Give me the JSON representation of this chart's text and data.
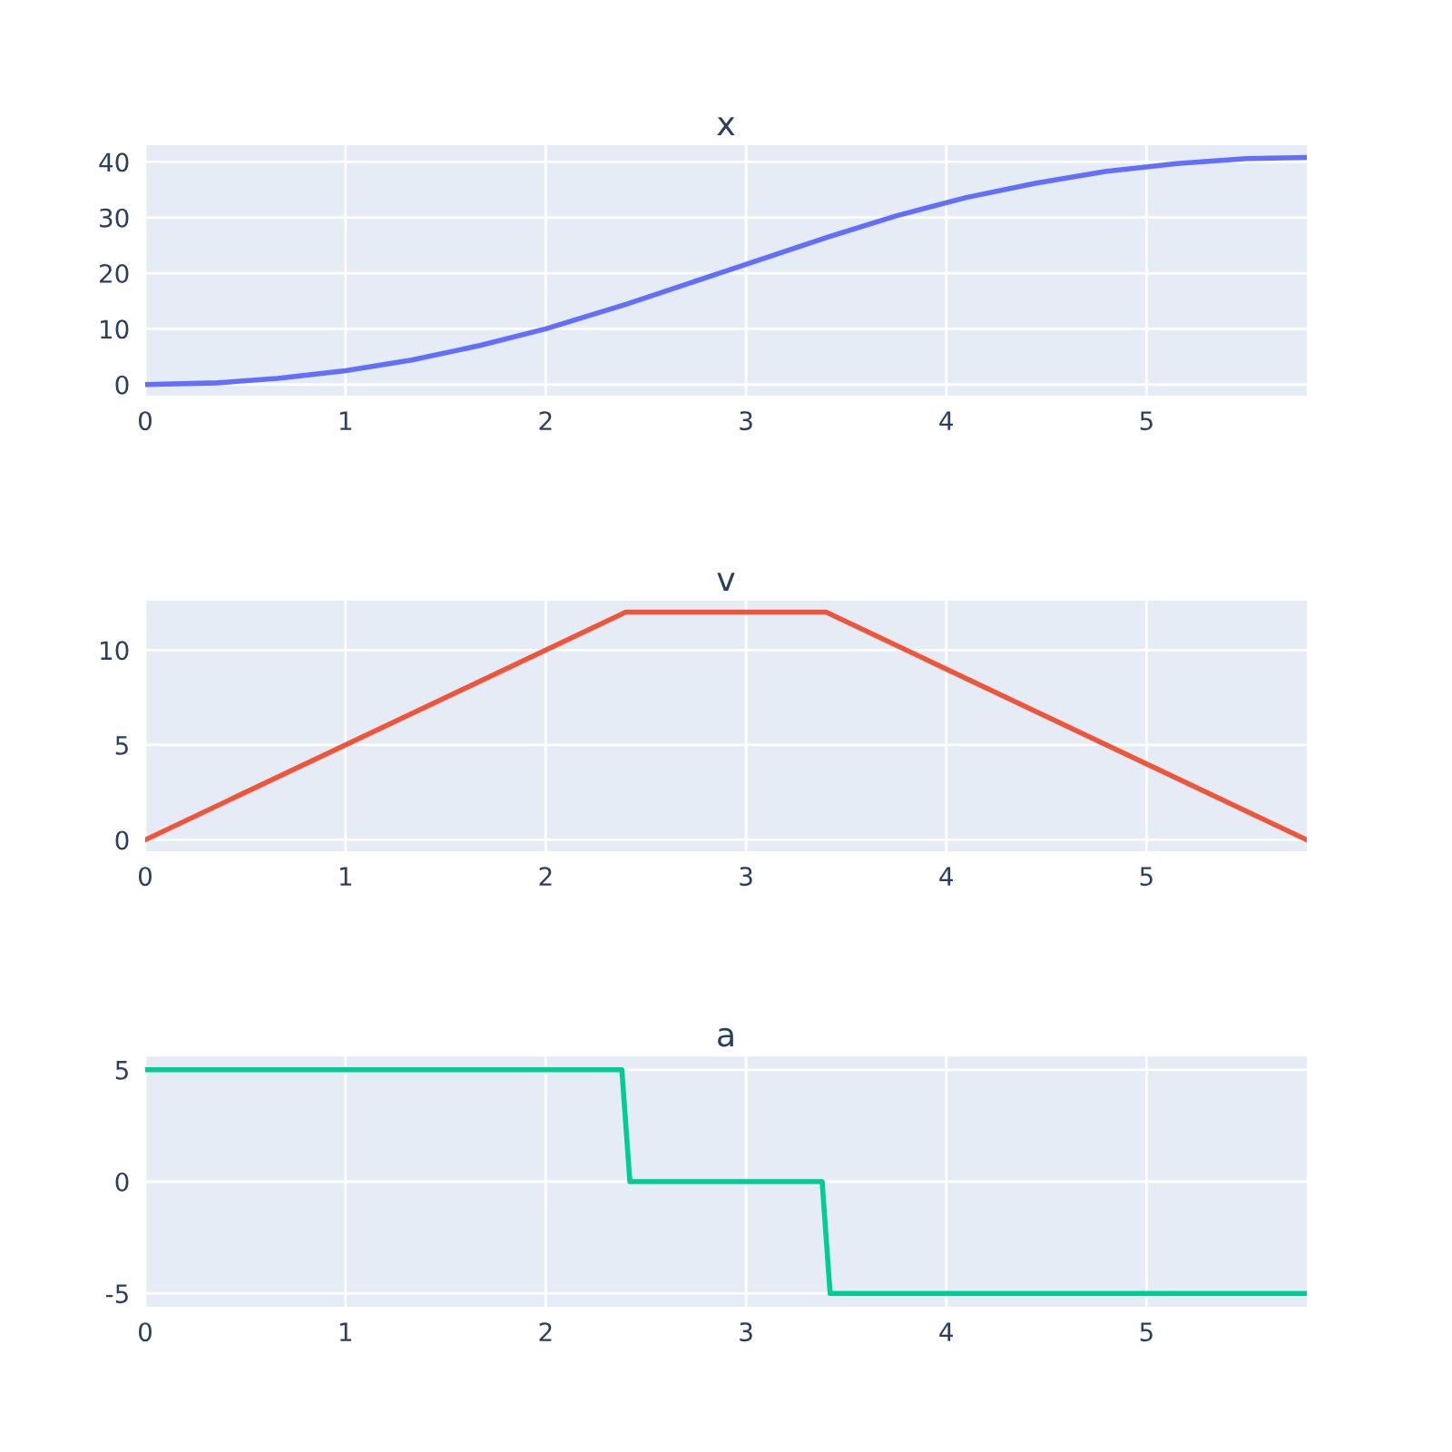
{
  "chart_data": [
    {
      "type": "line",
      "title": "x",
      "grid": true,
      "xlim": [
        0,
        5.8
      ],
      "xticks": [
        0,
        1,
        2,
        3,
        4,
        5
      ],
      "ylim": [
        -2,
        43
      ],
      "yticks": [
        0,
        10,
        20,
        30,
        40
      ],
      "series": [
        {
          "color": "#636efa",
          "x": [
            0,
            0.36,
            0.66,
            1.0,
            1.33,
            1.67,
            2.0,
            2.4,
            2.9,
            3.4,
            3.75,
            4.1,
            4.45,
            4.8,
            5.15,
            5.5,
            5.8
          ],
          "values": [
            0,
            0.3,
            1.1,
            2.5,
            4.4,
            7.0,
            10.0,
            14.4,
            20.4,
            26.4,
            30.3,
            33.6,
            36.2,
            38.3,
            39.7,
            40.6,
            40.8
          ]
        }
      ]
    },
    {
      "type": "line",
      "title": "v",
      "grid": true,
      "xlim": [
        0,
        5.8
      ],
      "xticks": [
        0,
        1,
        2,
        3,
        4,
        5
      ],
      "ylim": [
        -0.6,
        12.6
      ],
      "yticks": [
        0,
        5,
        10
      ],
      "series": [
        {
          "color": "#ef553b",
          "x": [
            0,
            2.4,
            3.4,
            5.8
          ],
          "values": [
            0,
            12,
            12,
            0
          ]
        }
      ]
    },
    {
      "type": "line",
      "title": "a",
      "grid": true,
      "xlim": [
        0,
        5.8
      ],
      "xticks": [
        0,
        1,
        2,
        3,
        4,
        5
      ],
      "ylim": [
        -5.6,
        5.6
      ],
      "yticks": [
        -5,
        0,
        5
      ],
      "series": [
        {
          "color": "#00cc96",
          "x": [
            0,
            2.38,
            2.42,
            3.38,
            3.42,
            5.8
          ],
          "values": [
            5,
            5,
            0,
            0,
            -5,
            -5
          ]
        }
      ]
    }
  ]
}
